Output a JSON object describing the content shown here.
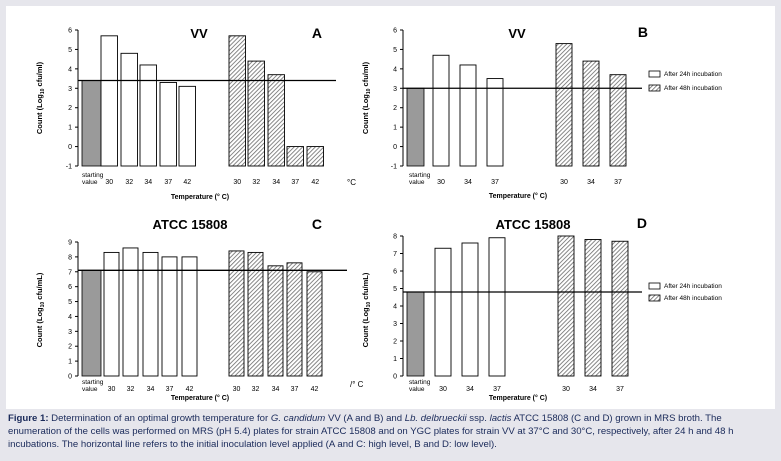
{
  "caption": {
    "label": "Figure 1:",
    "part1": " Determination of an optimal growth temperature for ",
    "organism1": "G. candidum",
    "part2": " VV (A and B) and ",
    "organism2": "Lb. delbrueckii",
    "part3": " ssp. ",
    "organism3": "lactis",
    "part4": " ATCC 15808 (C and D) grown in MRS broth. The enumeration of the cells was performed on MRS (pH 5.4) plates for strain ATCC 15808 and on YGC plates for strain VV at 37°C and 30°C, respectively, after 24 h and 48 h incubations. The horizontal line refers to the initial inoculation level applied (A and C: high level, B and D: low level)."
  },
  "colors": {
    "starting": "#9a9a9a",
    "open": "#ffffff",
    "hatched": "#7a7a7a",
    "caption_text": "#1a2a5a"
  },
  "chart_data": [
    {
      "panel": "A",
      "type": "bar",
      "title": "VV",
      "ylabel_pre": "Count (Log",
      "ylabel_sub": "10",
      "ylabel_post": " cfu/ml)",
      "xlabel": "Temperature (° C)",
      "unit_label": "°C",
      "ylim": [
        -1,
        6
      ],
      "yticks": [
        "-1",
        "0",
        "1",
        "2",
        "3",
        "4",
        "5",
        "6"
      ],
      "reference_line": 3.4,
      "starting_label": [
        "starting",
        "value"
      ],
      "starting": {
        "category": "starting value",
        "value": 3.4
      },
      "series": [
        {
          "name": "After 24h incubation",
          "categories": [
            "30",
            "32",
            "34",
            "37",
            "42"
          ],
          "values": [
            5.7,
            4.8,
            4.2,
            3.3,
            3.1
          ]
        },
        {
          "name": "After 48h incubation",
          "categories": [
            "30",
            "32",
            "34",
            "37",
            "42"
          ],
          "values": [
            5.7,
            4.4,
            3.7,
            0,
            0
          ]
        }
      ]
    },
    {
      "panel": "B",
      "type": "bar",
      "title": "VV",
      "ylabel_pre": "Count (Log",
      "ylabel_sub": "10",
      "ylabel_post": " cfu/ml)",
      "xlabel": "Temperature (° C)",
      "unit_label": "",
      "ylim": [
        -1,
        6
      ],
      "yticks": [
        "-1",
        "0",
        "1",
        "2",
        "3",
        "4",
        "5",
        "6"
      ],
      "reference_line": 3.0,
      "starting_label": [
        "starting",
        "value"
      ],
      "starting": {
        "category": "starting value",
        "value": 3.0
      },
      "legend": [
        "After 24h incubation",
        "After 48h incubation"
      ],
      "series": [
        {
          "name": "After 24h incubation",
          "categories": [
            "30",
            "34",
            "37"
          ],
          "values": [
            4.7,
            4.2,
            3.5
          ]
        },
        {
          "name": "After 48h incubation",
          "categories": [
            "30",
            "34",
            "37"
          ],
          "values": [
            5.3,
            4.4,
            3.7
          ]
        }
      ]
    },
    {
      "panel": "C",
      "type": "bar",
      "title": "ATCC 15808",
      "ylabel_pre": "Count (Log",
      "ylabel_sub": "10",
      "ylabel_post": " cfu/mL)",
      "xlabel": "Temperature (° C)",
      "unit_label": "/° C",
      "ylim": [
        0,
        9
      ],
      "yticks": [
        "0",
        "1",
        "2",
        "3",
        "4",
        "5",
        "6",
        "7",
        "8",
        "9"
      ],
      "reference_line": 7.1,
      "starting_label": [
        "starting",
        "value"
      ],
      "starting": {
        "category": "starting value",
        "value": 7.1
      },
      "series": [
        {
          "name": "After 24h incubation",
          "categories": [
            "30",
            "32",
            "34",
            "37",
            "42"
          ],
          "values": [
            8.3,
            8.6,
            8.3,
            8.0,
            8.0
          ]
        },
        {
          "name": "After 48h incubation",
          "categories": [
            "30",
            "32",
            "34",
            "37",
            "42"
          ],
          "values": [
            8.4,
            8.3,
            7.4,
            7.6,
            7.0
          ]
        }
      ]
    },
    {
      "panel": "D",
      "type": "bar",
      "title": "ATCC 15808",
      "ylabel_pre": "Count (Log",
      "ylabel_sub": "10",
      "ylabel_post": " cfu/mL)",
      "xlabel": "Temperature (° C)",
      "unit_label": "",
      "ylim": [
        0,
        8
      ],
      "yticks": [
        "0",
        "1",
        "2",
        "3",
        "4",
        "5",
        "6",
        "7",
        "8"
      ],
      "reference_line": 4.8,
      "starting_label": [
        "starting",
        "value"
      ],
      "starting": {
        "category": "starting value",
        "value": 4.8
      },
      "legend": [
        "After 24h incubation",
        "After 48h incubation"
      ],
      "series": [
        {
          "name": "After 24h incubation",
          "categories": [
            "30",
            "34",
            "37"
          ],
          "values": [
            7.3,
            7.6,
            7.9
          ]
        },
        {
          "name": "After 48h incubation",
          "categories": [
            "30",
            "34",
            "37"
          ],
          "values": [
            8.0,
            7.8,
            7.7
          ]
        }
      ]
    }
  ]
}
